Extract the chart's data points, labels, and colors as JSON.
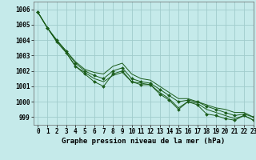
{
  "title": "Graphe pression niveau de la mer (hPa)",
  "xlim": [
    -0.5,
    23
  ],
  "ylim": [
    998.5,
    1006.5
  ],
  "yticks": [
    999,
    1000,
    1001,
    1002,
    1003,
    1004,
    1005,
    1006
  ],
  "xticks": [
    0,
    1,
    2,
    3,
    4,
    5,
    6,
    7,
    8,
    9,
    10,
    11,
    12,
    13,
    14,
    15,
    16,
    17,
    18,
    19,
    20,
    21,
    22,
    23
  ],
  "bg_color": "#c5eaea",
  "grid_color": "#a0cccc",
  "line_color": "#1a5c1a",
  "series": [
    [
      1005.8,
      1004.8,
      1003.9,
      1003.2,
      1002.3,
      1001.8,
      1001.3,
      1001.0,
      1001.8,
      1002.0,
      1001.3,
      1001.1,
      1001.1,
      1000.5,
      1000.1,
      999.5,
      1000.0,
      999.8,
      999.2,
      999.1,
      998.9,
      998.8,
      999.1,
      998.8
    ],
    [
      1005.8,
      1004.8,
      1003.9,
      1003.2,
      1002.3,
      1001.9,
      1001.5,
      1001.3,
      1001.7,
      1001.9,
      1001.3,
      1001.2,
      1001.1,
      1000.6,
      1000.2,
      999.6,
      1000.0,
      999.9,
      999.5,
      999.3,
      999.1,
      998.9,
      999.1,
      998.8
    ],
    [
      1005.8,
      1004.8,
      1004.0,
      1003.3,
      1002.5,
      1002.0,
      1001.7,
      1001.5,
      1002.0,
      1002.2,
      1001.5,
      1001.3,
      1001.2,
      1000.8,
      1000.4,
      1000.0,
      1000.1,
      1000.0,
      999.7,
      999.5,
      999.3,
      999.1,
      999.2,
      999.0
    ],
    [
      1005.8,
      1004.8,
      1004.0,
      1003.3,
      1002.6,
      1002.1,
      1001.9,
      1001.8,
      1002.3,
      1002.5,
      1001.8,
      1001.5,
      1001.4,
      1001.0,
      1000.6,
      1000.2,
      1000.2,
      1000.0,
      999.8,
      999.6,
      999.5,
      999.3,
      999.3,
      999.0
    ]
  ],
  "marker_series": [
    0,
    2
  ],
  "fontsize_title": 6.5,
  "fontsize_ticks": 5.5
}
